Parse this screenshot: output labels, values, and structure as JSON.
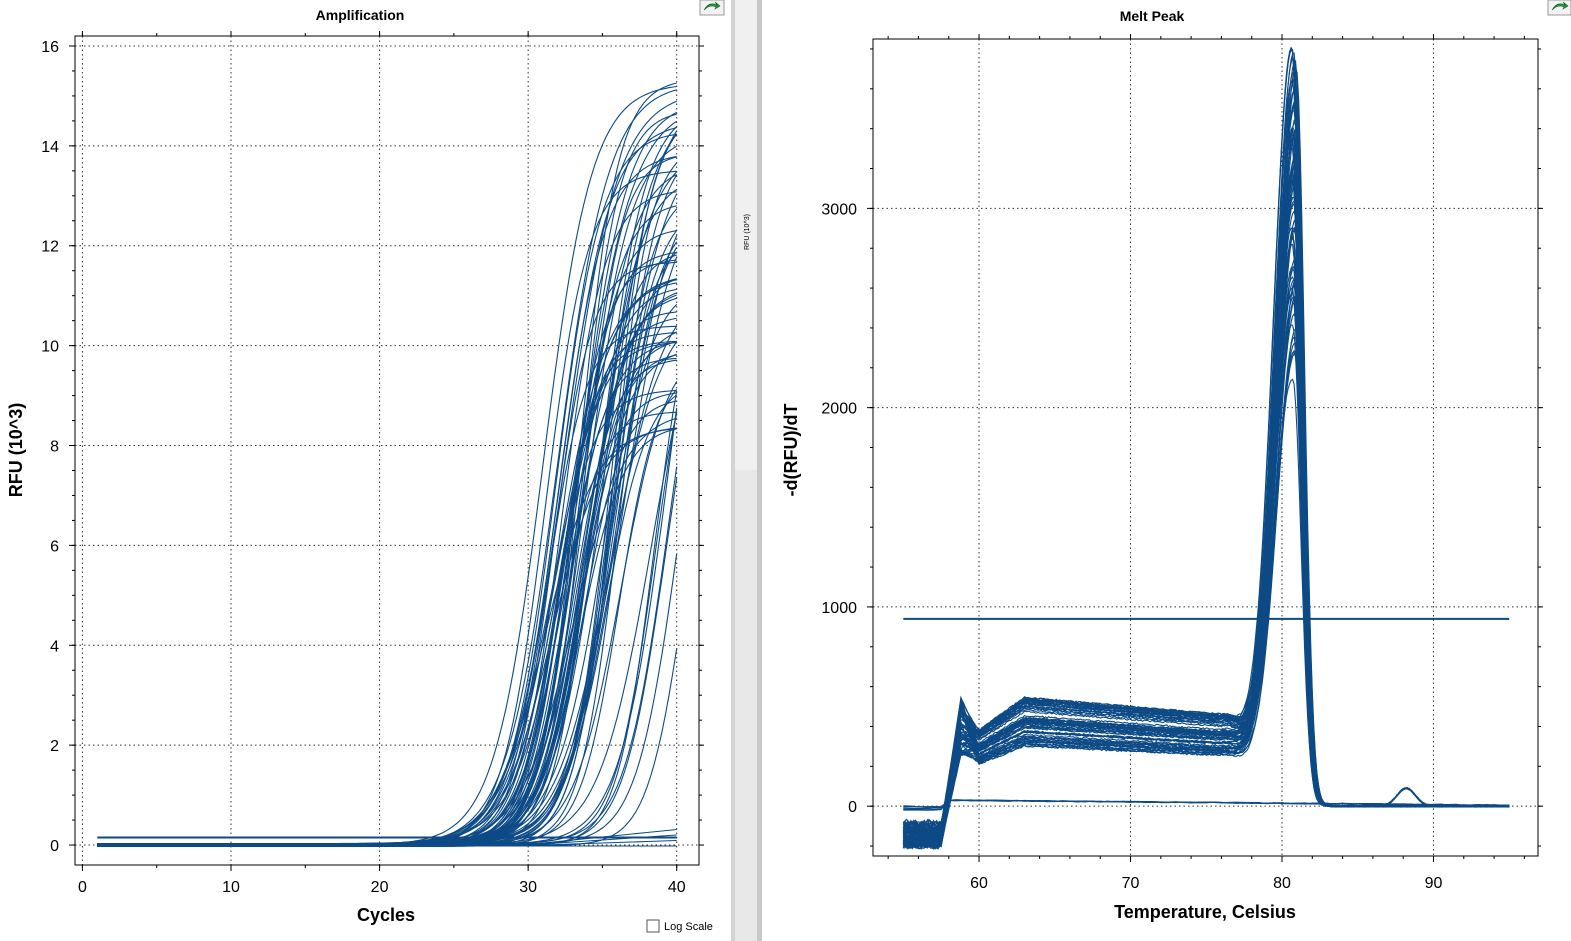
{
  "chart_data": [
    {
      "type": "line",
      "title": "Amplification",
      "xlabel": "Cycles",
      "ylabel": "RFU (10^3)",
      "xlim": [
        -0.5,
        41.5
      ],
      "ylim": [
        -0.4,
        16.2
      ],
      "xticks": [
        0,
        10,
        20,
        30,
        40
      ],
      "yticks": [
        0,
        2,
        4,
        6,
        8,
        10,
        12,
        14,
        16
      ],
      "grid": true,
      "threshold": 0.15,
      "curve_count": 80,
      "ct_range": [
        29.5,
        39.5
      ],
      "plateau_range": [
        8.3,
        15.4
      ],
      "color": "#0d4a86",
      "log_scale_label": "Log Scale",
      "log_scale_checked": false
    },
    {
      "type": "line",
      "title": "Melt Peak",
      "xlabel": "Temperature, Celsius",
      "ylabel": "-d(RFU)/dT",
      "xlim": [
        53,
        96.9
      ],
      "ylim": [
        -250,
        3850
      ],
      "xticks": [
        60,
        70,
        80,
        90
      ],
      "yticks": [
        0,
        1000,
        2000,
        3000
      ],
      "grid": true,
      "threshold": 940,
      "curve_count": 70,
      "peak_temperature": 80.8,
      "peak_range": [
        2000,
        3780
      ],
      "shoulder_range": [
        300,
        550
      ],
      "color": "#0d4a86"
    }
  ],
  "divider_label": "RFU (10^3)"
}
